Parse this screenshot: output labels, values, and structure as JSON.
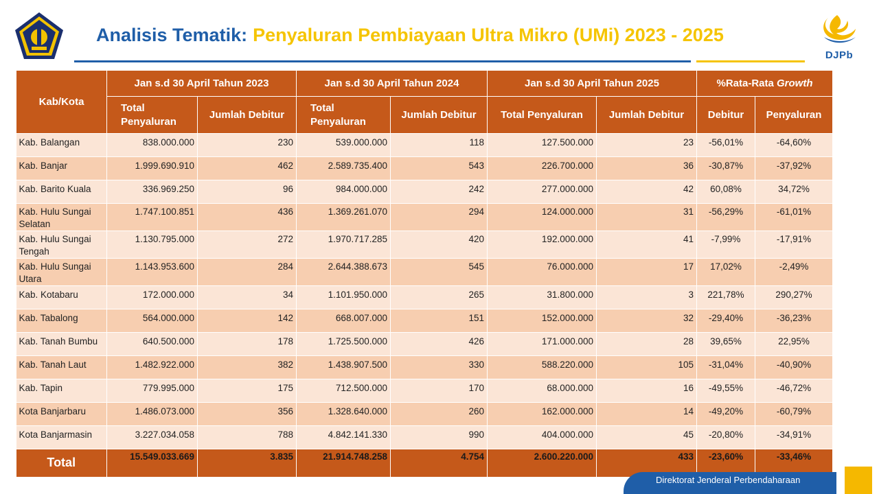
{
  "header": {
    "title_prefix": "Analisis Tematik:",
    "title_main": "Penyaluran Pembiayaan Ultra Mikro (UMi) 2023 - 2025",
    "logo_right_text": "DJPb"
  },
  "table": {
    "col_kab": "Kab/Kota",
    "group_2023": "Jan s.d 30 April Tahun 2023",
    "group_2024": "Jan s.d 30 April Tahun 2024",
    "group_2025": "Jan s.d 30 April Tahun 2025",
    "group_growth_prefix": "%Rata-Rata ",
    "group_growth_italic": "Growth",
    "sub_total_penyaluran": "Total Penyaluran",
    "sub_total_penyaluran_2025": "Total Penyaluran",
    "sub_jumlah_debitur": "Jumlah Debitur",
    "sub_debitur": "Debitur",
    "sub_penyaluran": "Penyaluran",
    "rows": [
      [
        "Kab. Balangan",
        "838.000.000",
        "230",
        "539.000.000",
        "118",
        "127.500.000",
        "23",
        "-56,01%",
        "-64,60%"
      ],
      [
        "Kab. Banjar",
        "1.999.690.910",
        "462",
        "2.589.735.400",
        "543",
        "226.700.000",
        "36",
        "-30,87%",
        "-37,92%"
      ],
      [
        "Kab. Barito Kuala",
        "336.969.250",
        "96",
        "984.000.000",
        "242",
        "277.000.000",
        "42",
        "60,08%",
        "34,72%"
      ],
      [
        "Kab. Hulu Sungai Selatan",
        "1.747.100.851",
        "436",
        "1.369.261.070",
        "294",
        "124.000.000",
        "31",
        "-56,29%",
        "-61,01%"
      ],
      [
        "Kab. Hulu Sungai Tengah",
        "1.130.795.000",
        "272",
        "1.970.717.285",
        "420",
        "192.000.000",
        "41",
        "-7,99%",
        "-17,91%"
      ],
      [
        "Kab. Hulu Sungai Utara",
        "1.143.953.600",
        "284",
        "2.644.388.673",
        "545",
        "76.000.000",
        "17",
        "17,02%",
        "-2,49%"
      ],
      [
        "Kab. Kotabaru",
        "172.000.000",
        "34",
        "1.101.950.000",
        "265",
        "31.800.000",
        "3",
        "221,78%",
        "290,27%"
      ],
      [
        "Kab. Tabalong",
        "564.000.000",
        "142",
        "668.007.000",
        "151",
        "152.000.000",
        "32",
        "-29,40%",
        "-36,23%"
      ],
      [
        "Kab. Tanah Bumbu",
        "640.500.000",
        "178",
        "1.725.500.000",
        "426",
        "171.000.000",
        "28",
        "39,65%",
        "22,95%"
      ],
      [
        "Kab. Tanah Laut",
        "1.482.922.000",
        "382",
        "1.438.907.500",
        "330",
        "588.220.000",
        "105",
        "-31,04%",
        "-40,90%"
      ],
      [
        "Kab. Tapin",
        "779.995.000",
        "175",
        "712.500.000",
        "170",
        "68.000.000",
        "16",
        "-49,55%",
        "-46,72%"
      ],
      [
        "Kota Banjarbaru",
        "1.486.073.000",
        "356",
        "1.328.640.000",
        "260",
        "162.000.000",
        "14",
        "-49,20%",
        "-60,79%"
      ],
      [
        "Kota Banjarmasin",
        "3.227.034.058",
        "788",
        "4.842.141.330",
        "990",
        "404.000.000",
        "45",
        "-20,80%",
        "-34,91%"
      ]
    ],
    "total": [
      "Total",
      "15.549.033.669",
      "3.835",
      "21.914.748.258",
      "4.754",
      "2.600.220.000",
      "433",
      "-23,60%",
      "-33,46%"
    ]
  },
  "footer": {
    "text": "Direktorat Jenderal Perbendaharaan"
  },
  "colors": {
    "accent_blue": "#1f5ea8",
    "accent_gold": "#f5c400",
    "table_header": "#c5591a",
    "row_light": "#fbe5d6",
    "row_dark": "#f7ceb0"
  }
}
